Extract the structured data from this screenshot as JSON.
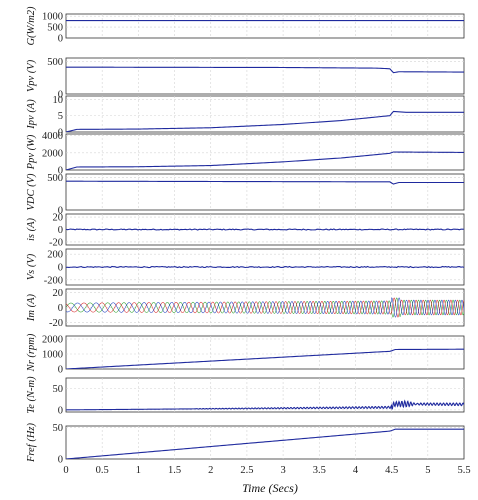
{
  "chart_data": {
    "type": "line",
    "xlabel": "Time (Secs)",
    "xlim": [
      0,
      5.5
    ],
    "xticks": [
      "0",
      "0.5",
      "1",
      "1.5",
      "2",
      "2.5",
      "3",
      "3.5",
      "4",
      "4.5",
      "5",
      "5.5"
    ],
    "grid": true,
    "panels": [
      {
        "ylabel": "G(W/m2)",
        "yticks": [
          "1000",
          "500",
          "0"
        ],
        "ylim": [
          0,
          1100
        ],
        "series": [
          {
            "color": "#1f2a9e",
            "kind": "piecewise",
            "points": [
              [
                0,
                800
              ],
              [
                5.5,
                800
              ]
            ]
          }
        ]
      },
      {
        "ylabel": "Vpv (V)",
        "yticks": [
          "500",
          "0"
        ],
        "ylim": [
          0,
          550
        ],
        "series": [
          {
            "color": "#1f2a9e",
            "kind": "piecewise",
            "points": [
              [
                0,
                410
              ],
              [
                3.0,
                405
              ],
              [
                4.3,
                395
              ],
              [
                4.48,
                385
              ],
              [
                4.52,
                325
              ],
              [
                4.6,
                340
              ],
              [
                5.5,
                335
              ]
            ]
          }
        ]
      },
      {
        "ylabel": "Ipv (A)",
        "yticks": [
          "10",
          "5",
          "0"
        ],
        "ylim": [
          0,
          11
        ],
        "series": [
          {
            "color": "#1f2a9e",
            "kind": "piecewise",
            "points": [
              [
                0,
                0
              ],
              [
                0.15,
                0.8
              ],
              [
                1.0,
                0.9
              ],
              [
                2.0,
                1.3
              ],
              [
                3.0,
                2.3
              ],
              [
                3.8,
                3.5
              ],
              [
                4.48,
                5.0
              ],
              [
                4.52,
                6.3
              ],
              [
                4.7,
                6.0
              ],
              [
                5.5,
                6.0
              ]
            ]
          }
        ]
      },
      {
        "ylabel": "Ppv (W)",
        "yticks": [
          "4000",
          "2000",
          "0"
        ],
        "ylim": [
          0,
          4200
        ],
        "series": [
          {
            "color": "#1f2a9e",
            "kind": "piecewise",
            "points": [
              [
                0,
                0
              ],
              [
                0.15,
                350
              ],
              [
                1.0,
                380
              ],
              [
                2.0,
                520
              ],
              [
                3.0,
                950
              ],
              [
                3.8,
                1400
              ],
              [
                4.48,
                1950
              ],
              [
                4.52,
                2100
              ],
              [
                5.5,
                2050
              ]
            ]
          }
        ]
      },
      {
        "ylabel": "VDC (V)",
        "yticks": [
          "500",
          "0"
        ],
        "ylim": [
          0,
          550
        ],
        "series": [
          {
            "color": "#1f2a9e",
            "kind": "piecewise",
            "points": [
              [
                0,
                440
              ],
              [
                4.48,
                430
              ],
              [
                4.52,
                395
              ],
              [
                4.6,
                420
              ],
              [
                5.5,
                420
              ]
            ]
          }
        ]
      },
      {
        "ylabel": "is (A)",
        "yticks": [
          "20",
          "0",
          "-20"
        ],
        "ylim": [
          -25,
          25
        ],
        "series": [
          {
            "color": "#1f2a9e",
            "kind": "noise",
            "center": 0,
            "amp": 0.8
          }
        ]
      },
      {
        "ylabel": "Vs (V)",
        "yticks": [
          "200",
          "0",
          "-200"
        ],
        "ylim": [
          -280,
          280
        ],
        "series": [
          {
            "color": "#1f2a9e",
            "kind": "noise",
            "center": 0,
            "amp": 8
          }
        ]
      },
      {
        "ylabel": "Im (A)",
        "yticks": [
          "20",
          "0",
          "-20"
        ],
        "ylim": [
          -25,
          25
        ],
        "series": [
          {
            "color": "#2ba02b",
            "kind": "osc",
            "amp_start": 6,
            "amp_mid": 9,
            "amp_after": 10,
            "f_start": 3.5,
            "f_end": 11,
            "phase": 0
          },
          {
            "color": "#d62728",
            "kind": "osc",
            "amp_start": 6,
            "amp_mid": 9,
            "amp_after": 10,
            "f_start": 3.5,
            "f_end": 11,
            "phase": 2.094
          },
          {
            "color": "#1f3fbf",
            "kind": "osc",
            "amp_start": 6,
            "amp_mid": 9,
            "amp_after": 10,
            "f_start": 3.5,
            "f_end": 11,
            "phase": 4.189
          }
        ]
      },
      {
        "ylabel": "Nr (rpm)",
        "yticks": [
          "2000",
          "1000",
          "0"
        ],
        "ylim": [
          0,
          2200
        ],
        "series": [
          {
            "color": "#1f2a9e",
            "kind": "piecewise",
            "points": [
              [
                0,
                0
              ],
              [
                4.48,
                1180
              ],
              [
                4.55,
                1300
              ],
              [
                5.5,
                1320
              ]
            ]
          }
        ]
      },
      {
        "ylabel": "Te (N-m)",
        "yticks": [
          "50",
          "0"
        ],
        "ylim": [
          -5,
          75
        ],
        "series": [
          {
            "color": "#1f2a9e",
            "kind": "ramp_osc",
            "points": [
              [
                0,
                0
              ],
              [
                4.48,
                6
              ],
              [
                4.55,
                14
              ],
              [
                5.5,
                13
              ]
            ],
            "osc_start": 1.8,
            "osc_amp_start": 0.5,
            "osc_amp_end": 3,
            "burst_at": 4.5,
            "burst_amp": 9
          }
        ]
      },
      {
        "ylabel": "Fref (Hz)",
        "yticks": [
          "50",
          "0"
        ],
        "ylim": [
          0,
          52
        ],
        "series": [
          {
            "color": "#1f2a9e",
            "kind": "piecewise",
            "points": [
              [
                0,
                0
              ],
              [
                4.48,
                44
              ],
              [
                4.55,
                47
              ],
              [
                5.5,
                47
              ]
            ]
          }
        ]
      }
    ]
  }
}
